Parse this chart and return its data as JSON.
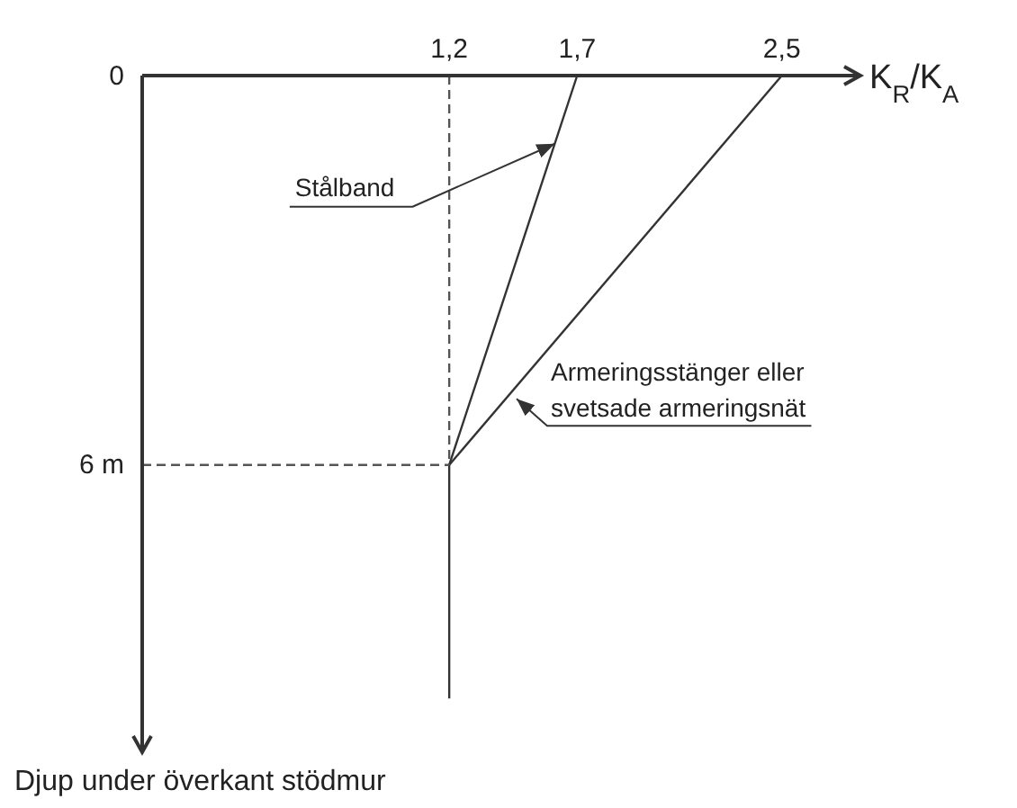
{
  "chart_data": {
    "type": "line",
    "xlabel": "K$_{R}$/K$_{A}$",
    "ylabel": "Djup under överkant stödmur",
    "xlim": [
      0,
      2.8
    ],
    "xticks": [
      {
        "value": 1.2,
        "label": "1,2"
      },
      {
        "value": 1.7,
        "label": "1,7"
      },
      {
        "value": 2.5,
        "label": "2,5"
      }
    ],
    "ylim": [
      10.4,
      0
    ],
    "yticks": [
      {
        "value": 0,
        "label": "0"
      },
      {
        "value": 6,
        "label": "6 m"
      }
    ],
    "line_style": "solid",
    "series": [
      {
        "name": "Stålband",
        "color": "#333333",
        "x": [
          1.7,
          1.2,
          1.2
        ],
        "values": [
          0,
          6,
          9.6
        ]
      },
      {
        "name": "Armeringsstänger eller svetsade armeringsnät",
        "color": "#333333",
        "x": [
          2.5,
          1.2
        ],
        "values": [
          0,
          6
        ]
      },
      {
        "color": "#555555",
        "x": [
          0,
          1.2
        ],
        "values": [
          6,
          6
        ],
        "line_style": "dashed"
      },
      {
        "color": "#555555",
        "x": [
          1.2,
          1.2
        ],
        "values": [
          0,
          6
        ],
        "line_style": "dashed"
      }
    ]
  }
}
